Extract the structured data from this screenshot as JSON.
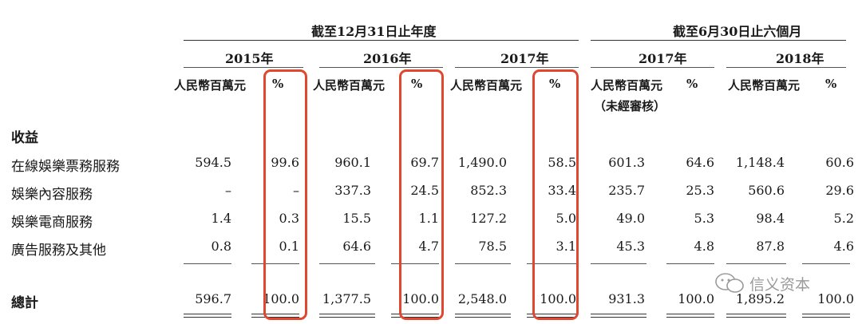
{
  "header": {
    "group1": "截至12月31日止年度",
    "group2": "截至6月30日止六個月"
  },
  "years": [
    "2015年",
    "2016年",
    "2017年",
    "2017年",
    "2018年"
  ],
  "units": {
    "rmb": "人民幣百萬元",
    "pct": "%",
    "unaudited": "（未經審核）"
  },
  "section_title": "收益",
  "rows": [
    {
      "label": "在線娛樂票務服務",
      "values": [
        "594.5",
        "99.6",
        "960.1",
        "69.7",
        "1,490.0",
        "58.5",
        "601.3",
        "64.6",
        "1,148.4",
        "60.6"
      ]
    },
    {
      "label": "娛樂內容服務",
      "values": [
        "–",
        "–",
        "337.3",
        "24.5",
        "852.3",
        "33.4",
        "235.7",
        "25.3",
        "560.6",
        "29.6"
      ]
    },
    {
      "label": "娛樂電商服務",
      "values": [
        "1.4",
        "0.3",
        "15.5",
        "1.1",
        "127.2",
        "5.0",
        "49.0",
        "5.3",
        "98.4",
        "5.2"
      ]
    },
    {
      "label": "廣告服務及其他",
      "values": [
        "0.8",
        "0.1",
        "64.6",
        "4.7",
        "78.5",
        "3.1",
        "45.3",
        "4.8",
        "87.8",
        "4.6"
      ]
    }
  ],
  "total": {
    "label": "總計",
    "values": [
      "596.7",
      "100.0",
      "1,377.5",
      "100.0",
      "2,548.0",
      "100.0",
      "931.3",
      "100.0",
      "1,895.2",
      "100.0"
    ]
  },
  "watermark": "信义资本",
  "colors": {
    "highlight": "#e0472e",
    "text": "#1a1a1a"
  }
}
